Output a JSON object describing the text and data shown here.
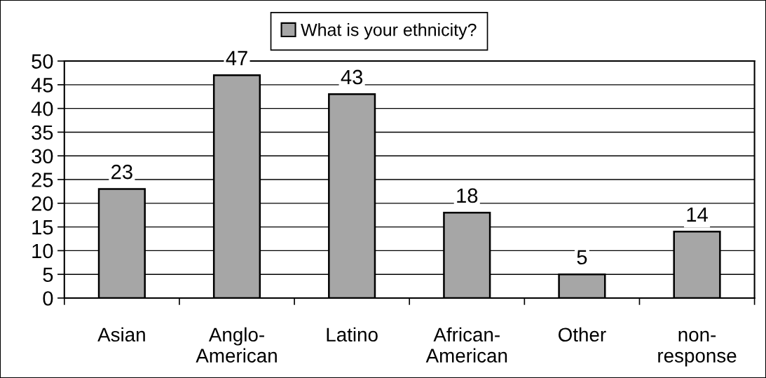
{
  "chart_data": {
    "type": "bar",
    "categories": [
      "Asian",
      "Anglo-\nAmerican",
      "Latino",
      "African-\nAmerican",
      "Other",
      "non-\nresponse"
    ],
    "series": [
      {
        "name": "What is your ethnicity?",
        "color": "#a6a6a6",
        "values": [
          23,
          47,
          43,
          18,
          5,
          14
        ]
      }
    ],
    "ylim": [
      0,
      50
    ],
    "yticks": [
      0,
      5,
      10,
      15,
      20,
      25,
      30,
      35,
      40,
      45,
      50
    ],
    "grid": "y",
    "legend": "top",
    "data_labels": true
  }
}
